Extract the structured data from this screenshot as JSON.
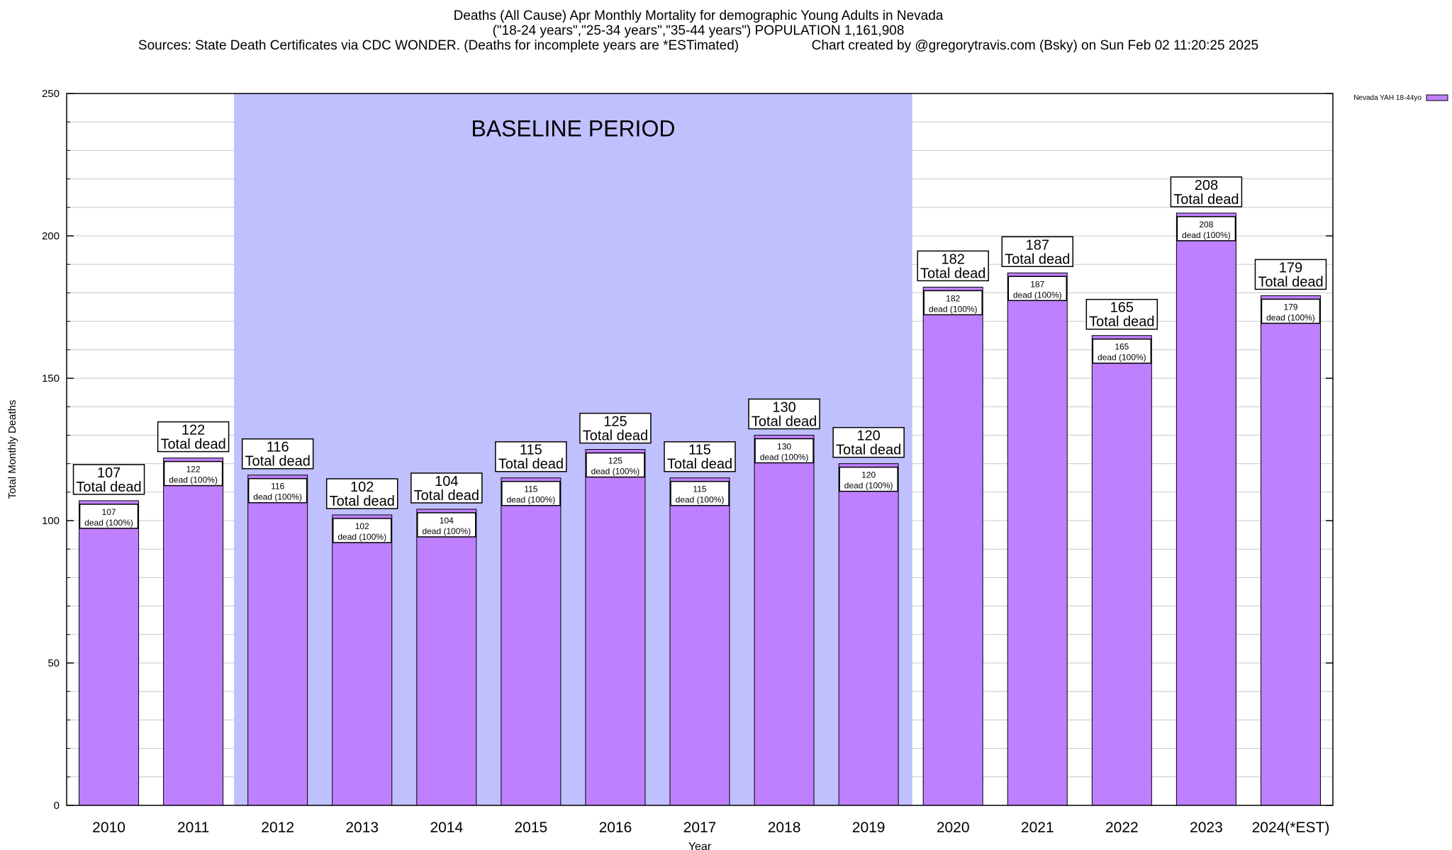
{
  "title": {
    "line1": "Deaths (All Cause) Apr Monthly Mortality for demographic Young Adults in Nevada",
    "line2": "(\"18-24 years\",\"25-34 years\",\"35-44 years\") POPULATION 1,161,908",
    "line3_left": "Sources: State Death Certificates via CDC WONDER. (Deaths for incomplete years are *ESTimated)",
    "line3_right": "Chart created by @gregorytravis.com (Bsky) on Sun Feb 02 11:20:25 2025"
  },
  "chart_data": {
    "type": "bar",
    "xlabel": "Year",
    "ylabel": "Total Monthly Deaths",
    "ylim": [
      0,
      250
    ],
    "y_major_ticks": [
      0,
      50,
      100,
      150,
      200,
      250
    ],
    "y_minor_step": 10,
    "categories": [
      "2010",
      "2011",
      "2012",
      "2013",
      "2014",
      "2015",
      "2016",
      "2017",
      "2018",
      "2019",
      "2020",
      "2021",
      "2022",
      "2023",
      "2024(*EST)"
    ],
    "series": [
      {
        "name": "Nevada YAH 18-44yo",
        "values": [
          107,
          122,
          116,
          102,
          104,
          115,
          125,
          115,
          130,
          120,
          182,
          187,
          165,
          208,
          179
        ]
      }
    ],
    "top_label_suffix": "Total dead",
    "inner_label_suffix": "dead (100%)",
    "baseline": {
      "label": "BASELINE PERIOD",
      "from": "2012",
      "to": "2019"
    },
    "legend_position": "top-right",
    "colors": {
      "bar": "#bf80ff",
      "bar_stroke": "#000000",
      "baseline": "#c0c0ff",
      "grid": "#c8c8c8"
    }
  }
}
